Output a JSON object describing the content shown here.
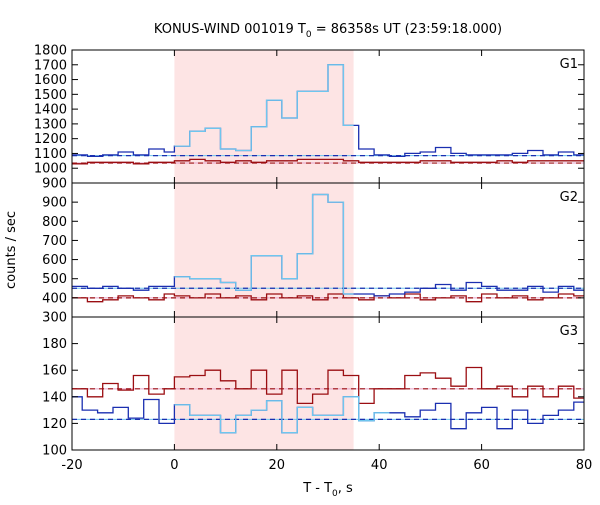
{
  "chart_data": {
    "type": "line",
    "title_main": "KONUS-WIND 001019 T",
    "title_sub": "0",
    "title_rest": " = 86358s UT (23:59:18.000)",
    "xlabel_main": "T - T",
    "xlabel_sub": "0",
    "xlabel_rest": ", s",
    "ylabel": "counts / sec",
    "xlim": [
      -20,
      80
    ],
    "x_ticks": [
      "-20",
      "0",
      "20",
      "40",
      "60",
      "80"
    ],
    "highlight_interval": [
      0,
      35
    ],
    "colors": {
      "blue": "#1a2fb0",
      "cyan": "#6ec6ee",
      "red": "#9b0e12",
      "pink": "#e6a0c8",
      "shade": "#fde4e4"
    },
    "panels": [
      {
        "label": "G1",
        "ylim": [
          900,
          1800
        ],
        "y_ticks": [
          900,
          1000,
          1100,
          1200,
          1300,
          1400,
          1500,
          1600,
          1700,
          1800
        ],
        "blue_background": 1085,
        "red_background": 1035,
        "cyan_range": [
          0,
          35
        ],
        "blue_steps": [
          [
            -20,
            1090
          ],
          [
            -17,
            1080
          ],
          [
            -14,
            1090
          ],
          [
            -11,
            1110
          ],
          [
            -8,
            1090
          ],
          [
            -5,
            1130
          ],
          [
            -2,
            1110
          ],
          [
            0,
            1150
          ],
          [
            3,
            1250
          ],
          [
            6,
            1270
          ],
          [
            9,
            1130
          ],
          [
            12,
            1120
          ],
          [
            15,
            1280
          ],
          [
            18,
            1460
          ],
          [
            21,
            1340
          ],
          [
            24,
            1520
          ],
          [
            27,
            1520
          ],
          [
            30,
            1700
          ],
          [
            33,
            1290
          ],
          [
            36,
            1130
          ],
          [
            39,
            1090
          ],
          [
            42,
            1080
          ],
          [
            45,
            1100
          ],
          [
            48,
            1110
          ],
          [
            51,
            1140
          ],
          [
            54,
            1100
          ],
          [
            57,
            1090
          ],
          [
            60,
            1090
          ],
          [
            63,
            1090
          ],
          [
            66,
            1100
          ],
          [
            69,
            1120
          ],
          [
            72,
            1090
          ],
          [
            75,
            1110
          ],
          [
            78,
            1090
          ]
        ],
        "red_steps": [
          [
            -20,
            1030
          ],
          [
            -17,
            1040
          ],
          [
            -14,
            1040
          ],
          [
            -11,
            1040
          ],
          [
            -8,
            1030
          ],
          [
            -5,
            1040
          ],
          [
            -2,
            1040
          ],
          [
            0,
            1050
          ],
          [
            3,
            1060
          ],
          [
            6,
            1050
          ],
          [
            9,
            1040
          ],
          [
            12,
            1050
          ],
          [
            15,
            1040
          ],
          [
            18,
            1050
          ],
          [
            21,
            1050
          ],
          [
            24,
            1060
          ],
          [
            27,
            1060
          ],
          [
            30,
            1060
          ],
          [
            33,
            1050
          ],
          [
            36,
            1040
          ],
          [
            39,
            1040
          ],
          [
            42,
            1040
          ],
          [
            45,
            1040
          ],
          [
            48,
            1050
          ],
          [
            51,
            1050
          ],
          [
            54,
            1040
          ],
          [
            57,
            1040
          ],
          [
            60,
            1040
          ],
          [
            63,
            1050
          ],
          [
            66,
            1040
          ],
          [
            69,
            1050
          ],
          [
            72,
            1050
          ],
          [
            75,
            1050
          ],
          [
            78,
            1050
          ]
        ]
      },
      {
        "label": "G2",
        "ylim": [
          300,
          1000
        ],
        "y_ticks": [
          300,
          400,
          500,
          600,
          700,
          800,
          900
        ],
        "blue_background": 450,
        "red_background": 400,
        "cyan_range": [
          0,
          35
        ],
        "blue_steps": [
          [
            -20,
            460
          ],
          [
            -17,
            450
          ],
          [
            -14,
            460
          ],
          [
            -11,
            450
          ],
          [
            -8,
            440
          ],
          [
            -5,
            460
          ],
          [
            -2,
            460
          ],
          [
            0,
            510
          ],
          [
            3,
            500
          ],
          [
            6,
            500
          ],
          [
            9,
            480
          ],
          [
            12,
            440
          ],
          [
            15,
            620
          ],
          [
            18,
            620
          ],
          [
            21,
            500
          ],
          [
            24,
            630
          ],
          [
            27,
            940
          ],
          [
            30,
            900
          ],
          [
            33,
            420
          ],
          [
            36,
            420
          ],
          [
            39,
            410
          ],
          [
            42,
            420
          ],
          [
            45,
            430
          ],
          [
            48,
            450
          ],
          [
            51,
            470
          ],
          [
            54,
            440
          ],
          [
            57,
            480
          ],
          [
            60,
            460
          ],
          [
            63,
            440
          ],
          [
            66,
            440
          ],
          [
            69,
            460
          ],
          [
            72,
            430
          ],
          [
            75,
            460
          ],
          [
            78,
            440
          ]
        ],
        "red_steps": [
          [
            -20,
            400
          ],
          [
            -17,
            380
          ],
          [
            -14,
            390
          ],
          [
            -11,
            410
          ],
          [
            -8,
            400
          ],
          [
            -5,
            390
          ],
          [
            -2,
            420
          ],
          [
            0,
            410
          ],
          [
            3,
            400
          ],
          [
            6,
            420
          ],
          [
            9,
            400
          ],
          [
            12,
            410
          ],
          [
            15,
            390
          ],
          [
            18,
            420
          ],
          [
            21,
            400
          ],
          [
            24,
            410
          ],
          [
            27,
            390
          ],
          [
            30,
            420
          ],
          [
            33,
            400
          ],
          [
            36,
            390
          ],
          [
            39,
            410
          ],
          [
            42,
            400
          ],
          [
            45,
            420
          ],
          [
            48,
            390
          ],
          [
            51,
            400
          ],
          [
            54,
            410
          ],
          [
            57,
            380
          ],
          [
            60,
            420
          ],
          [
            63,
            400
          ],
          [
            66,
            410
          ],
          [
            69,
            390
          ],
          [
            72,
            400
          ],
          [
            75,
            420
          ],
          [
            78,
            410
          ]
        ]
      },
      {
        "label": "G3",
        "ylim": [
          100,
          200
        ],
        "y_ticks": [
          100,
          120,
          140,
          160,
          180
        ],
        "blue_background": 123,
        "red_background": 146,
        "cyan_range": [
          0,
          42
        ],
        "blue_steps": [
          [
            -20,
            140
          ],
          [
            -18,
            130
          ],
          [
            -15,
            128
          ],
          [
            -12,
            132
          ],
          [
            -9,
            124
          ],
          [
            -6,
            138
          ],
          [
            -3,
            120
          ],
          [
            0,
            134
          ],
          [
            3,
            126
          ],
          [
            6,
            126
          ],
          [
            9,
            113
          ],
          [
            12,
            126
          ],
          [
            15,
            130
          ],
          [
            18,
            137
          ],
          [
            21,
            113
          ],
          [
            24,
            132
          ],
          [
            27,
            126
          ],
          [
            30,
            126
          ],
          [
            33,
            140
          ],
          [
            36,
            122
          ],
          [
            39,
            128
          ],
          [
            42,
            128
          ],
          [
            45,
            125
          ],
          [
            48,
            130
          ],
          [
            51,
            135
          ],
          [
            54,
            116
          ],
          [
            57,
            128
          ],
          [
            60,
            132
          ],
          [
            63,
            116
          ],
          [
            66,
            130
          ],
          [
            69,
            120
          ],
          [
            72,
            126
          ],
          [
            75,
            130
          ],
          [
            78,
            136
          ]
        ],
        "red_steps": [
          [
            -20,
            146
          ],
          [
            -17,
            140
          ],
          [
            -14,
            150
          ],
          [
            -11,
            145
          ],
          [
            -8,
            156
          ],
          [
            -5,
            142
          ],
          [
            -2,
            146
          ],
          [
            0,
            155
          ],
          [
            3,
            156
          ],
          [
            6,
            160
          ],
          [
            9,
            152
          ],
          [
            12,
            146
          ],
          [
            15,
            160
          ],
          [
            18,
            142
          ],
          [
            21,
            160
          ],
          [
            24,
            135
          ],
          [
            27,
            142
          ],
          [
            30,
            160
          ],
          [
            33,
            156
          ],
          [
            36,
            135
          ],
          [
            39,
            146
          ],
          [
            42,
            146
          ],
          [
            45,
            156
          ],
          [
            48,
            158
          ],
          [
            51,
            154
          ],
          [
            54,
            148
          ],
          [
            57,
            162
          ],
          [
            60,
            146
          ],
          [
            63,
            148
          ],
          [
            66,
            140
          ],
          [
            69,
            148
          ],
          [
            72,
            140
          ],
          [
            75,
            148
          ],
          [
            78,
            139
          ]
        ]
      }
    ]
  }
}
